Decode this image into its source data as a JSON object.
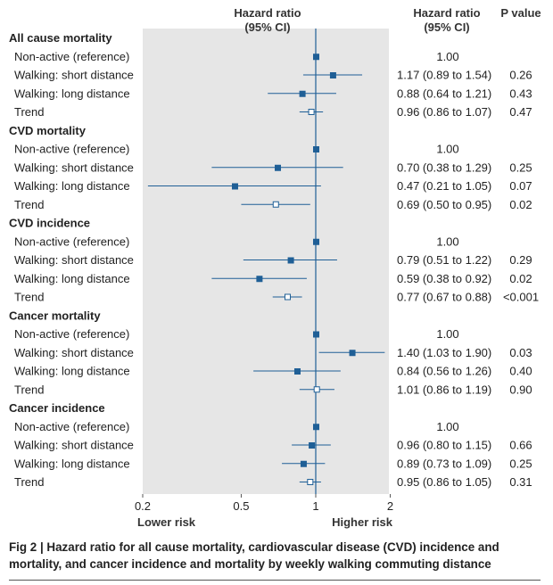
{
  "chart_data": {
    "type": "forest",
    "header_hr_plot": [
      "Hazard ratio",
      "(95% CI)"
    ],
    "header_hr_table": [
      "Hazard ratio",
      "(95% CI)"
    ],
    "header_p": "P value",
    "axis_scale": "log",
    "xlim": [
      0.2,
      2
    ],
    "ticks": [
      "0.2",
      "0.5",
      "1",
      "2"
    ],
    "tick_values": [
      0.2,
      0.5,
      1,
      2
    ],
    "reference_value": 1,
    "xlabel_left": "Lower risk",
    "xlabel_right": "Higher risk",
    "colors": {
      "panel": "#e6e6e6",
      "marker": "#1f5f96",
      "ref_line": "#1f5f96"
    },
    "groups": [
      {
        "title": "All cause mortality",
        "rows": [
          {
            "label": "Non-active (reference)",
            "hr": 1.0,
            "lo": null,
            "hi": null,
            "hr_text": "1.00",
            "p": "",
            "marker": "filled"
          },
          {
            "label": "Walking: short distance",
            "hr": 1.17,
            "lo": 0.89,
            "hi": 1.54,
            "hr_text": "1.17 (0.89 to 1.54)",
            "p": "0.26",
            "marker": "filled"
          },
          {
            "label": "Walking: long distance",
            "hr": 0.88,
            "lo": 0.64,
            "hi": 1.21,
            "hr_text": "0.88 (0.64 to 1.21)",
            "p": "0.43",
            "marker": "filled"
          },
          {
            "label": "Trend",
            "hr": 0.96,
            "lo": 0.86,
            "hi": 1.07,
            "hr_text": "0.96 (0.86 to 1.07)",
            "p": "0.47",
            "marker": "open"
          }
        ]
      },
      {
        "title": "CVD mortality",
        "rows": [
          {
            "label": "Non-active (reference)",
            "hr": 1.0,
            "lo": null,
            "hi": null,
            "hr_text": "1.00",
            "p": "",
            "marker": "filled"
          },
          {
            "label": "Walking: short distance",
            "hr": 0.7,
            "lo": 0.38,
            "hi": 1.29,
            "hr_text": "0.70 (0.38 to 1.29)",
            "p": "0.25",
            "marker": "filled"
          },
          {
            "label": "Walking: long distance",
            "hr": 0.47,
            "lo": 0.21,
            "hi": 1.05,
            "hr_text": "0.47 (0.21 to 1.05)",
            "p": "0.07",
            "marker": "filled"
          },
          {
            "label": "Trend",
            "hr": 0.69,
            "lo": 0.5,
            "hi": 0.95,
            "hr_text": "0.69 (0.50 to 0.95)",
            "p": "0.02",
            "marker": "open"
          }
        ]
      },
      {
        "title": "CVD incidence",
        "rows": [
          {
            "label": "Non-active (reference)",
            "hr": 1.0,
            "lo": null,
            "hi": null,
            "hr_text": "1.00",
            "p": "",
            "marker": "filled"
          },
          {
            "label": "Walking: short distance",
            "hr": 0.79,
            "lo": 0.51,
            "hi": 1.22,
            "hr_text": "0.79 (0.51 to 1.22)",
            "p": "0.29",
            "marker": "filled"
          },
          {
            "label": "Walking: long distance",
            "hr": 0.59,
            "lo": 0.38,
            "hi": 0.92,
            "hr_text": "0.59 (0.38 to 0.92)",
            "p": "0.02",
            "marker": "filled"
          },
          {
            "label": "Trend",
            "hr": 0.77,
            "lo": 0.67,
            "hi": 0.88,
            "hr_text": "0.77 (0.67 to 0.88)",
            "p": "<0.001",
            "marker": "open"
          }
        ]
      },
      {
        "title": "Cancer mortality",
        "rows": [
          {
            "label": "Non-active (reference)",
            "hr": 1.0,
            "lo": null,
            "hi": null,
            "hr_text": "1.00",
            "p": "",
            "marker": "filled"
          },
          {
            "label": "Walking: short distance",
            "hr": 1.4,
            "lo": 1.03,
            "hi": 1.9,
            "hr_text": "1.40 (1.03 to 1.90)",
            "p": "0.03",
            "marker": "filled"
          },
          {
            "label": "Walking: long distance",
            "hr": 0.84,
            "lo": 0.56,
            "hi": 1.26,
            "hr_text": "0.84 (0.56 to 1.26)",
            "p": "0.40",
            "marker": "filled"
          },
          {
            "label": "Trend",
            "hr": 1.01,
            "lo": 0.86,
            "hi": 1.19,
            "hr_text": "1.01 (0.86 to 1.19)",
            "p": "0.90",
            "marker": "open"
          }
        ]
      },
      {
        "title": "Cancer incidence",
        "rows": [
          {
            "label": "Non-active (reference)",
            "hr": 1.0,
            "lo": null,
            "hi": null,
            "hr_text": "1.00",
            "p": "",
            "marker": "filled"
          },
          {
            "label": "Walking: short distance",
            "hr": 0.96,
            "lo": 0.8,
            "hi": 1.15,
            "hr_text": "0.96 (0.80 to 1.15)",
            "p": "0.66",
            "marker": "filled"
          },
          {
            "label": "Walking: long distance",
            "hr": 0.89,
            "lo": 0.73,
            "hi": 1.09,
            "hr_text": "0.89 (0.73 to 1.09)",
            "p": "0.25",
            "marker": "filled"
          },
          {
            "label": "Trend",
            "hr": 0.95,
            "lo": 0.86,
            "hi": 1.05,
            "hr_text": "0.95 (0.86 to 1.05)",
            "p": "0.31",
            "marker": "open"
          }
        ]
      }
    ]
  },
  "caption": "Fig 2 | Hazard ratio for all cause mortality, cardiovascular disease (CVD) incidence and mortality, and cancer incidence and mortality by weekly walking commuting distance"
}
